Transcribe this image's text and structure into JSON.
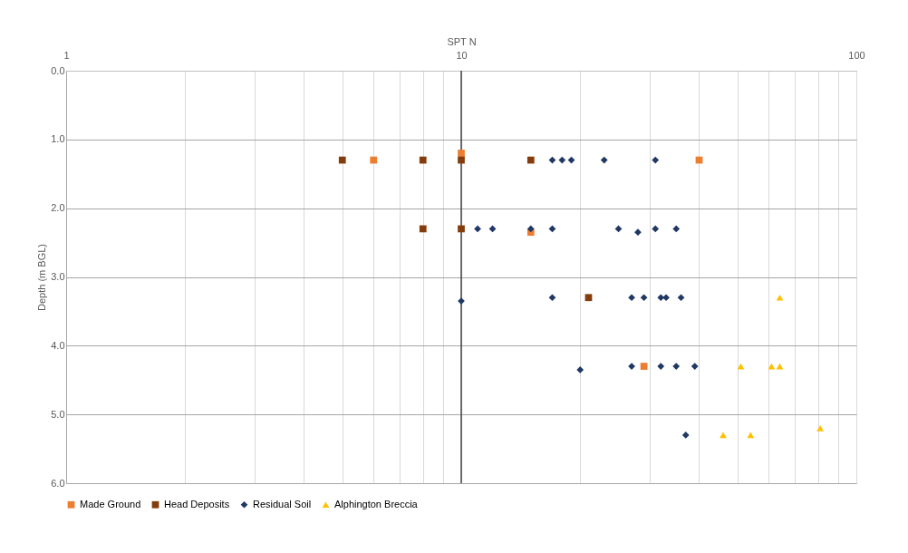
{
  "chart_data": {
    "type": "scatter",
    "xlabel": "SPT N",
    "ylabel": "Depth (m BGL)",
    "log": "x",
    "grid": true,
    "legend": "bottom",
    "xlim": [
      1,
      100
    ],
    "xticks": [
      1,
      {
        "value": 2,
        "label": null
      },
      {
        "value": 3,
        "label": null
      },
      {
        "value": 4,
        "label": null
      },
      {
        "value": 5,
        "label": null
      },
      {
        "value": 6,
        "label": null
      },
      {
        "value": 7,
        "label": null
      },
      {
        "value": 8,
        "label": null
      },
      {
        "value": 9,
        "label": null
      },
      10,
      {
        "value": 20,
        "label": null
      },
      {
        "value": 30,
        "label": null
      },
      {
        "value": 40,
        "label": null
      },
      {
        "value": 50,
        "label": null
      },
      {
        "value": 60,
        "label": null
      },
      {
        "value": 70,
        "label": null
      },
      {
        "value": 80,
        "label": null
      },
      {
        "value": 90,
        "label": null
      },
      100
    ],
    "ylim": [
      6,
      0
    ],
    "yticks": [
      {
        "value": 0,
        "label": "0.0"
      },
      {
        "value": 1,
        "label": "1.0"
      },
      {
        "value": 2,
        "label": "2.0"
      },
      {
        "value": 3,
        "label": "3.0"
      },
      {
        "value": 4,
        "label": "4.0"
      },
      {
        "value": 5,
        "label": "5.0"
      },
      {
        "value": 6,
        "label": "6.0"
      }
    ],
    "ref_lines": [
      {
        "axis": "x",
        "value": 10,
        "color": "#404040"
      }
    ],
    "series": [
      {
        "name": "Made Ground",
        "color": "#ed7d31",
        "marker": "square",
        "x": [
          6,
          10,
          40,
          15,
          29
        ],
        "values": [
          1.3,
          1.2,
          1.3,
          2.35,
          4.3
        ]
      },
      {
        "name": "Head Deposits",
        "color": "#843c0c",
        "marker": "square",
        "x": [
          5,
          8,
          10,
          15,
          8,
          10,
          21
        ],
        "values": [
          1.3,
          1.3,
          1.3,
          1.3,
          2.3,
          2.3,
          3.3
        ]
      },
      {
        "name": "Residual Soil",
        "color": "#203864",
        "marker": "diamond",
        "x": [
          17,
          18,
          19,
          23,
          31,
          11,
          12,
          15,
          17,
          25,
          28,
          31,
          35,
          10,
          17,
          27,
          29,
          32,
          33,
          36,
          20,
          27,
          32,
          35,
          39,
          37
        ],
        "values": [
          1.3,
          1.3,
          1.3,
          1.3,
          1.3,
          2.3,
          2.3,
          2.3,
          2.3,
          2.3,
          2.35,
          2.3,
          2.3,
          3.35,
          3.3,
          3.3,
          3.3,
          3.3,
          3.3,
          3.3,
          4.35,
          4.3,
          4.3,
          4.3,
          4.3,
          5.3
        ]
      },
      {
        "name": "Alphington Breccia",
        "color": "#ffc000",
        "marker": "triangle",
        "x": [
          64,
          51,
          61,
          64,
          46,
          54,
          81
        ],
        "values": [
          3.3,
          4.3,
          4.3,
          4.3,
          5.3,
          5.3,
          5.2
        ]
      }
    ]
  }
}
